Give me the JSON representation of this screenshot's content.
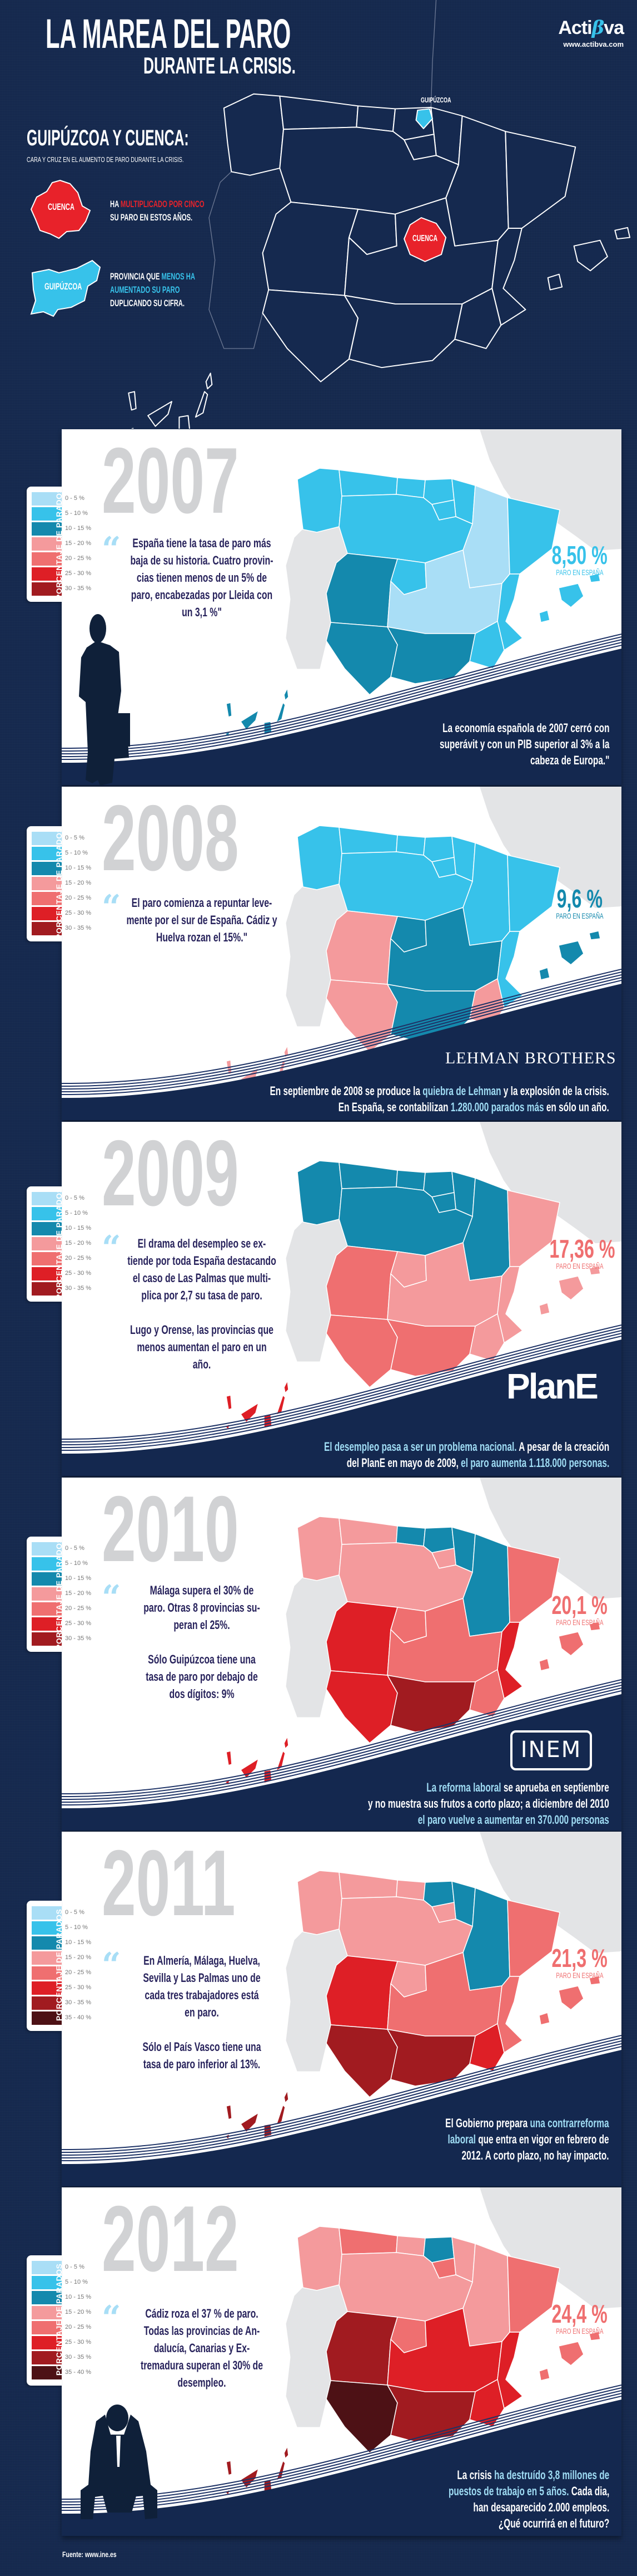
{
  "header": {
    "title": "LA MAREA DEL PARO",
    "subtitle": "DURANTE LA CRISIS.",
    "logo": {
      "prefix": "Acti",
      "beta": "β",
      "suffix": "va",
      "url": "www.actibva.com"
    }
  },
  "intro": {
    "heading": "GUIPÚZCOA Y CUENCA:",
    "subheading": "CARA Y CRUZ EN EL AUMENTO DE PARO DURANTE LA CRISIS.",
    "cuenca": {
      "label": "CUENCA",
      "text_pre": "HA ",
      "text_hl": "MULTIPLICADO POR CINCO",
      "text_post": "SU PARO EN ESTOS AÑOS.",
      "color": "#e8222a"
    },
    "guipuzcoa": {
      "label": "GUIPÚZCOA",
      "text_pre": "PROVINCIA QUE ",
      "text_hl": "MENOS HA",
      "text_hl2": "AUMENTADO SU PARO",
      "text_post": "DUPLICANDO SU CIFRA.",
      "color": "#37c2ea"
    },
    "map_labels": {
      "guipuzcoa": "GUIPÚZCOA",
      "cuenca": "CUENCA"
    }
  },
  "legend": {
    "title": "PORCENTAJE DE PARADOS",
    "items": [
      {
        "label": "0 - 5 %",
        "color": "#a9def6"
      },
      {
        "label": "5 - 10 %",
        "color": "#37c2ea"
      },
      {
        "label": "10 - 15 %",
        "color": "#1489ad"
      },
      {
        "label": "15 - 20 %",
        "color": "#f49a9c"
      },
      {
        "label": "20 - 25 %",
        "color": "#ef6f70"
      },
      {
        "label": "25 - 30 %",
        "color": "#de1f26"
      },
      {
        "label": "30 - 35 %",
        "color": "#a11b20"
      },
      {
        "label": "35 - 40 %",
        "color": "#4d1115"
      }
    ]
  },
  "paro_label": "PARO EN ESPAÑA",
  "panels": [
    {
      "year": "2007",
      "legend_count": 7,
      "rate": "8,50 %",
      "rate_color": "#37c2ea",
      "quote": [
        "España tiene la tasa de paro más",
        "baja de su historia. Cuatro provin-",
        "cias tienen menos de un 5% de",
        "paro, encabezadas por Lleida con",
        "un 3,1 %\""
      ],
      "note": [
        [
          {
            "t": "La economía española de 2007 cerró con",
            "hl": false
          }
        ],
        [
          {
            "t": "superávit y con un PIB superior al 3% a la",
            "hl": false
          }
        ],
        [
          {
            "t": "cabeza de Europa.\"",
            "hl": false
          }
        ]
      ],
      "regions": {
        "galicia": 1,
        "asturias": 1,
        "cantabria": 1,
        "paisvasco": 1,
        "navarra": 1,
        "rioja": 1,
        "aragon": 0,
        "cataluna": 1,
        "cyl": 1,
        "madrid": 1,
        "extremadura": 2,
        "clm": 0,
        "valencia": 1,
        "murcia": 1,
        "andwest": 2,
        "andeast": 2,
        "baleares": 1,
        "canarias": 2
      }
    },
    {
      "year": "2008",
      "legend_count": 7,
      "rate": "9,6 %",
      "rate_color": "#1489ad",
      "quote": [
        "El paro comienza a repuntar leve-",
        "mente por el sur de España. Cádiz y",
        "Huelva rozan el 15%.\""
      ],
      "logo": "LEHMAN BROTHERS",
      "note": [
        [
          {
            "t": "En septiembre de 2008 se produce la ",
            "hl": false
          },
          {
            "t": "quiebra de Lehman",
            "hl": true
          },
          {
            "t": " y la explosión de la crisis.",
            "hl": false
          }
        ],
        [
          {
            "t": "En España, se contabilizan ",
            "hl": false
          },
          {
            "t": "1.280.000 parados más",
            "hl": true
          },
          {
            "t": " en sólo un año.",
            "hl": false
          }
        ]
      ],
      "regions": {
        "galicia": 1,
        "asturias": 1,
        "cantabria": 1,
        "paisvasco": 1,
        "navarra": 1,
        "rioja": 1,
        "aragon": 1,
        "cataluna": 1,
        "cyl": 1,
        "madrid": 2,
        "extremadura": 3,
        "clm": 2,
        "valencia": 1,
        "murcia": 3,
        "andwest": 3,
        "andeast": 2,
        "baleares": 2,
        "canarias": 3
      }
    },
    {
      "year": "2009",
      "legend_count": 7,
      "rate": "17,36 %",
      "rate_color": "#ef6f70",
      "quote": [
        "El drama del desempleo se ex-",
        "tiende por toda España destacando",
        "el caso de Las Palmas que multi-",
        "plica por 2,7 su tasa de paro.",
        "",
        "Lugo y Orense, las provincias que",
        "menos aumentan el paro en un",
        "año."
      ],
      "logo": "PlanE",
      "note": [
        [
          {
            "t": "El desempleo pasa a ser un problema nacional.",
            "hl": true
          },
          {
            "t": " A pesar de la creación",
            "hl": false
          }
        ],
        [
          {
            "t": "del PlanE en mayo de 2009, ",
            "hl": false
          },
          {
            "t": "el paro aumenta 1.118.000 personas.",
            "hl": true
          }
        ]
      ],
      "regions": {
        "galicia": 2,
        "asturias": 2,
        "cantabria": 2,
        "paisvasco": 2,
        "navarra": 2,
        "rioja": 2,
        "aragon": 2,
        "cataluna": 3,
        "cyl": 2,
        "madrid": 3,
        "extremadura": 4,
        "clm": 3,
        "valencia": 3,
        "murcia": 3,
        "andwest": 4,
        "andeast": 4,
        "baleares": 3,
        "canarias": 5
      }
    },
    {
      "year": "2010",
      "legend_count": 7,
      "rate": "20,1 %",
      "rate_color": "#ef6f70",
      "quote": [
        "Málaga supera el 30% de",
        "paro. Otras 8 provincias su-",
        "peran el 25%.",
        "",
        "Sólo Guipúzcoa tiene una",
        "tasa de paro por debajo de",
        "dos dígitos: 9%"
      ],
      "logo": "INEM",
      "note": [
        [
          {
            "t": "La reforma laboral",
            "hl": true
          },
          {
            "t": " se aprueba en septiembre",
            "hl": false
          }
        ],
        [
          {
            "t": "y no muestra sus frutos a corto plazo; a diciembre del 2010",
            "hl": false
          }
        ],
        [
          {
            "t": "el paro vuelve a aumentar en 370.000 personas",
            "hl": true
          }
        ]
      ],
      "regions": {
        "galicia": 3,
        "asturias": 3,
        "cantabria": 2,
        "paisvasco": 2,
        "navarra": 2,
        "rioja": 3,
        "aragon": 2,
        "cataluna": 4,
        "cyl": 3,
        "madrid": 4,
        "extremadura": 5,
        "clm": 4,
        "valencia": 5,
        "murcia": 4,
        "andwest": 5,
        "andeast": 6,
        "baleares": 4,
        "canarias": 5
      }
    },
    {
      "year": "2011",
      "legend_count": 8,
      "rate": "21,3 %",
      "rate_color": "#ef6f70",
      "quote": [
        "En Almería, Málaga, Huelva,",
        "Sevilla y Las Palmas uno de",
        "cada tres trabajadores está",
        "en paro.",
        "",
        "Sólo el País Vasco tiene una",
        "tasa de paro inferior al 13%."
      ],
      "note": [
        [
          {
            "t": "El Gobierno prepara ",
            "hl": false
          },
          {
            "t": "una contrarreforma",
            "hl": true
          }
        ],
        [
          {
            "t": "laboral",
            "hl": true
          },
          {
            "t": " que entra en vigor en febrero de",
            "hl": false
          }
        ],
        [
          {
            "t": "2012. A corto plazo, no hay impacto.",
            "hl": false
          }
        ]
      ],
      "regions": {
        "galicia": 3,
        "asturias": 3,
        "cantabria": 3,
        "paisvasco": 2,
        "navarra": 2,
        "rioja": 3,
        "aragon": 2,
        "cataluna": 4,
        "cyl": 3,
        "madrid": 3,
        "extremadura": 5,
        "clm": 4,
        "valencia": 4,
        "murcia": 5,
        "andwest": 6,
        "andeast": 6,
        "baleares": 4,
        "canarias": 6
      }
    },
    {
      "year": "2012",
      "legend_count": 8,
      "rate": "24,4 %",
      "rate_color": "#ef6f70",
      "quote": [
        "Cádiz roza el 37 % de paro.",
        "Todas las provincias de An-",
        "dalucía, Canarias y Ex-",
        "tremadura superan el 30% de",
        "desempleo."
      ],
      "note": [
        [
          {
            "t": "La crisis ",
            "hl": false
          },
          {
            "t": "ha destruído 3,8 millones de",
            "hl": true
          }
        ],
        [
          {
            "t": "puestos de trabajo en 5 años.",
            "hl": true
          },
          {
            "t": " Cada dia,",
            "hl": false
          }
        ],
        [
          {
            "t": "han desaparecido 2.000 empleos.",
            "hl": false
          }
        ],
        [
          {
            "t": "¿Qué ocurrirá en el futuro?",
            "hl": false
          }
        ]
      ],
      "regions": {
        "galicia": 3,
        "asturias": 4,
        "cantabria": 3,
        "paisvasco": 2,
        "navarra": 3,
        "rioja": 4,
        "aragon": 3,
        "cataluna": 4,
        "cyl": 3,
        "madrid": 4,
        "extremadura": 6,
        "clm": 5,
        "valencia": 5,
        "murcia": 5,
        "andwest": 7,
        "andeast": 6,
        "baleares": 4,
        "canarias": 6
      }
    }
  ],
  "footer": {
    "source": "Fuente: www.ine.es"
  }
}
